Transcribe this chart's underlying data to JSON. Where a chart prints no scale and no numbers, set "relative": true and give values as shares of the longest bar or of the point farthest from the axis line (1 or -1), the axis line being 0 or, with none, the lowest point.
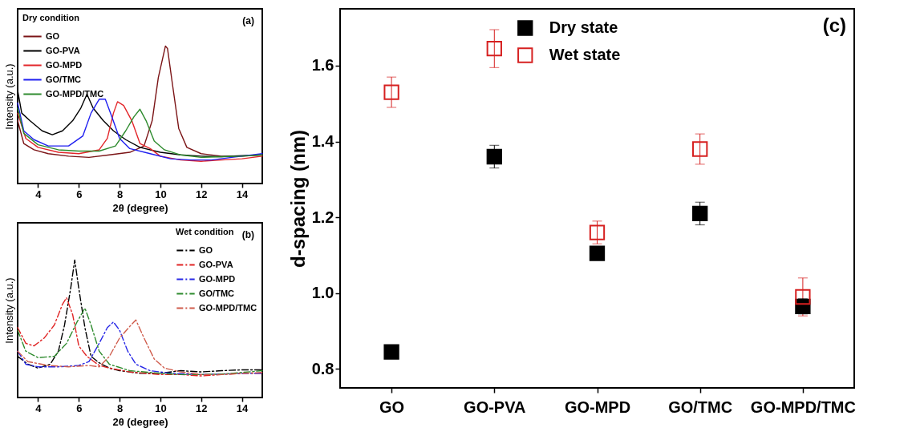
{
  "chart_data": [
    {
      "type": "line",
      "relative": true,
      "xlabel": "2θ (degree)",
      "ylabel": "Intensity (a.u.)",
      "legend_title": "Dry condition",
      "legend": "top left",
      "line_style": "solid",
      "tick_labels": "x",
      "xlim": [
        3,
        15
      ],
      "xticks": [
        4,
        6,
        8,
        10,
        12,
        14
      ],
      "annotations": [
        "(a)"
      ],
      "series": [
        {
          "name": "GO",
          "color": "#7b1416",
          "x": [
            3,
            3.3,
            3.8,
            4.5,
            5.5,
            6.5,
            7.5,
            8.5,
            9.2,
            9.6,
            9.9,
            10.25,
            10.35,
            10.6,
            10.9,
            11.3,
            12,
            13,
            14,
            15
          ],
          "values": [
            0.457,
            0.291,
            0.245,
            0.217,
            0.199,
            0.19,
            0.208,
            0.227,
            0.273,
            0.457,
            0.77,
            1.0,
            0.982,
            0.715,
            0.401,
            0.263,
            0.217,
            0.199,
            0.199,
            0.208
          ]
        },
        {
          "name": "GO-PVA",
          "color": "#000000",
          "x": [
            3,
            3.2,
            3.6,
            4.2,
            4.7,
            5.2,
            5.7,
            6.1,
            6.4,
            6.7,
            7.2,
            7.7,
            8.3,
            9,
            10,
            11,
            12,
            13,
            14,
            15
          ],
          "values": [
            0.678,
            0.512,
            0.457,
            0.383,
            0.355,
            0.383,
            0.457,
            0.549,
            0.65,
            0.549,
            0.457,
            0.383,
            0.319,
            0.263,
            0.227,
            0.208,
            0.199,
            0.195,
            0.203,
            0.208
          ]
        },
        {
          "name": "GO-MPD",
          "color": "#e3262a",
          "x": [
            3,
            3.4,
            4,
            5,
            6,
            7,
            7.4,
            7.7,
            7.9,
            8.2,
            8.6,
            9,
            9.5,
            10,
            11,
            12,
            13,
            14,
            15
          ],
          "values": [
            0.512,
            0.328,
            0.263,
            0.227,
            0.217,
            0.245,
            0.328,
            0.512,
            0.595,
            0.567,
            0.457,
            0.291,
            0.254,
            0.199,
            0.171,
            0.162,
            0.171,
            0.18,
            0.199
          ]
        },
        {
          "name": "GO/TMC",
          "color": "#1f1ff0",
          "x": [
            3,
            3.3,
            3.8,
            4.5,
            5.5,
            6.2,
            6.6,
            7,
            7.3,
            7.6,
            8,
            8.5,
            9.5,
            10.5,
            11.5,
            12.5,
            13.5,
            15
          ],
          "values": [
            0.586,
            0.383,
            0.319,
            0.273,
            0.273,
            0.346,
            0.512,
            0.613,
            0.613,
            0.494,
            0.328,
            0.254,
            0.217,
            0.18,
            0.171,
            0.171,
            0.19,
            0.217
          ]
        },
        {
          "name": "GO-MPD/TMC",
          "color": "#2e8b2e",
          "x": [
            3,
            3.3,
            4,
            5,
            6,
            7,
            7.8,
            8.3,
            8.7,
            9,
            9.3,
            9.7,
            10.2,
            11,
            12,
            13,
            14,
            15
          ],
          "values": [
            0.549,
            0.365,
            0.282,
            0.245,
            0.236,
            0.236,
            0.273,
            0.383,
            0.484,
            0.54,
            0.457,
            0.309,
            0.245,
            0.208,
            0.19,
            0.195,
            0.199,
            0.208
          ]
        }
      ]
    },
    {
      "type": "line",
      "relative": true,
      "xlabel": "2θ (degree)",
      "ylabel": "Intensity (a.u.)",
      "legend_title": "Wet condition",
      "legend": "top right",
      "line_style": "dashed",
      "tick_labels": "x",
      "xlim": [
        3,
        15
      ],
      "xticks": [
        4,
        6,
        8,
        10,
        12,
        14
      ],
      "annotations": [
        "(b)"
      ],
      "series": [
        {
          "name": "GO",
          "color": "#000000",
          "x": [
            3,
            3.5,
            4,
            4.6,
            5,
            5.3,
            5.6,
            5.8,
            6,
            6.3,
            6.6,
            7,
            7.5,
            8,
            9,
            10,
            11,
            12,
            13,
            14,
            15
          ],
          "values": [
            0.299,
            0.242,
            0.214,
            0.242,
            0.337,
            0.527,
            0.792,
            1.0,
            0.792,
            0.508,
            0.299,
            0.252,
            0.214,
            0.195,
            0.176,
            0.176,
            0.195,
            0.186,
            0.195,
            0.201,
            0.201
          ]
        },
        {
          "name": "GO-PVA",
          "color": "#e02424",
          "x": [
            3,
            3.4,
            3.8,
            4.3,
            4.8,
            5.2,
            5.4,
            5.7,
            6,
            6.4,
            7,
            7.5,
            8.5,
            10,
            11,
            12,
            13,
            14,
            15
          ],
          "values": [
            0.508,
            0.394,
            0.375,
            0.432,
            0.527,
            0.678,
            0.725,
            0.602,
            0.375,
            0.299,
            0.233,
            0.214,
            0.186,
            0.167,
            0.167,
            0.157,
            0.167,
            0.176,
            0.176
          ]
        },
        {
          "name": "GO-MPD",
          "color": "#2828e6",
          "x": [
            3,
            3.4,
            4,
            5,
            6,
            6.5,
            7,
            7.4,
            7.7,
            8,
            8.4,
            8.8,
            9.5,
            10.5,
            12,
            13,
            14,
            15
          ],
          "values": [
            0.337,
            0.242,
            0.223,
            0.223,
            0.233,
            0.261,
            0.394,
            0.508,
            0.549,
            0.489,
            0.337,
            0.242,
            0.195,
            0.176,
            0.167,
            0.17,
            0.176,
            0.176
          ]
        },
        {
          "name": "GO/TMC",
          "color": "#2e8b2e",
          "x": [
            3,
            3.4,
            4,
            4.8,
            5.4,
            5.9,
            6.3,
            6.6,
            7,
            7.5,
            8.5,
            10,
            11,
            12,
            13,
            14,
            15
          ],
          "values": [
            0.489,
            0.337,
            0.29,
            0.299,
            0.394,
            0.545,
            0.65,
            0.527,
            0.337,
            0.242,
            0.195,
            0.176,
            0.167,
            0.167,
            0.17,
            0.182,
            0.195
          ]
        },
        {
          "name": "GO-MPD/TMC",
          "color": "#cf5b4b",
          "x": [
            3,
            3.5,
            4.5,
            5.5,
            6.5,
            7,
            7.5,
            8,
            8.5,
            8.8,
            9.2,
            9.7,
            10.2,
            11,
            12,
            13,
            14,
            15
          ],
          "values": [
            0.337,
            0.261,
            0.233,
            0.223,
            0.233,
            0.223,
            0.299,
            0.432,
            0.517,
            0.564,
            0.432,
            0.28,
            0.214,
            0.186,
            0.167,
            0.167,
            0.176,
            0.182
          ]
        }
      ]
    },
    {
      "type": "scatter",
      "ylabel": "d-spacing (nm)",
      "legend": "top",
      "marker": "square",
      "ylim": [
        0.75,
        1.75
      ],
      "yticks": [
        0.8,
        {
          "value": 1,
          "label": "1.0"
        },
        1.2,
        1.4,
        1.6
      ],
      "annotations": [
        "(c)"
      ],
      "categories": [
        "GO",
        "GO-PVA",
        "GO-MPD",
        "GO/TMC",
        "GO-MPD/TMC"
      ],
      "series": [
        {
          "name": "Dry state",
          "color": "#000000",
          "values": [
            0.845,
            1.36,
            1.105,
            1.21,
            0.965
          ],
          "errors": [
            0.015,
            0.03,
            0.015,
            0.03,
            0.02
          ]
        },
        {
          "name": "Wet state",
          "color": "#d62020",
          "values": [
            1.53,
            1.645,
            1.16,
            1.38,
            0.99
          ],
          "errors": [
            0.04,
            0.05,
            0.03,
            0.04,
            0.05
          ]
        }
      ]
    }
  ]
}
